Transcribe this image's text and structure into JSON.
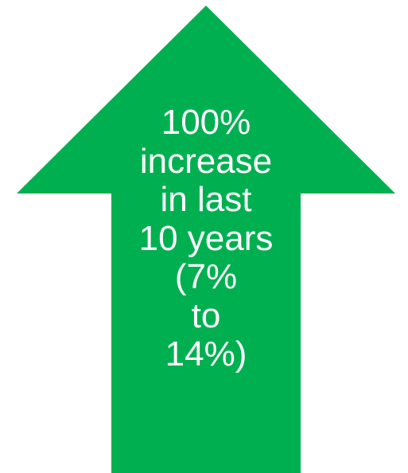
{
  "arrow": {
    "fill_color": "#00b050",
    "text_color": "#ffffff",
    "lines": [
      "100%",
      "increase",
      "in last",
      "10 years",
      "(7%",
      "to",
      "14%)"
    ]
  }
}
